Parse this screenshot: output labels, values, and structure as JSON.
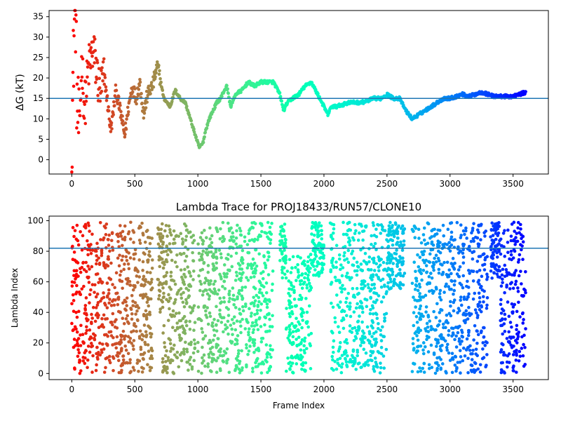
{
  "chart_data": [
    {
      "type": "scatter",
      "title": "",
      "xlabel": "",
      "ylabel": "ΔG (kT)",
      "xlim": [
        -180,
        3780
      ],
      "ylim": [
        -3.5,
        36.5
      ],
      "xticks": [
        0,
        500,
        1000,
        1500,
        2000,
        2500,
        3000,
        3500
      ],
      "yticks": [
        0,
        5,
        10,
        15,
        20,
        25,
        30,
        35
      ],
      "hline": 15,
      "hline_color": "#1f77b4",
      "colormap": "rainbow (red at frame 0 to violet at frame 3600)",
      "series": [
        {
          "x_range": [
            0,
            3600
          ],
          "key_points": [
            [
              0,
              4
            ],
            [
              10,
              20
            ],
            [
              20,
              33
            ],
            [
              30,
              36.5
            ],
            [
              40,
              15
            ],
            [
              60,
              6
            ],
            [
              80,
              25
            ],
            [
              100,
              12
            ],
            [
              130,
              22
            ],
            [
              170,
              27
            ],
            [
              220,
              17
            ],
            [
              260,
              20
            ],
            [
              310,
              7
            ],
            [
              350,
              17
            ],
            [
              390,
              11
            ],
            [
              420,
              6
            ],
            [
              450,
              13
            ],
            [
              480,
              18
            ],
            [
              510,
              15
            ],
            [
              540,
              19
            ],
            [
              570,
              11
            ],
            [
              600,
              16
            ],
            [
              640,
              18
            ],
            [
              680,
              23
            ],
            [
              700,
              20
            ],
            [
              730,
              15
            ],
            [
              780,
              13
            ],
            [
              820,
              17
            ],
            [
              860,
              15
            ],
            [
              900,
              14
            ],
            [
              940,
              10
            ],
            [
              980,
              6
            ],
            [
              1010,
              3
            ],
            [
              1040,
              4
            ],
            [
              1060,
              7
            ],
            [
              1090,
              10
            ],
            [
              1120,
              12
            ],
            [
              1150,
              14
            ],
            [
              1180,
              15
            ],
            [
              1210,
              17
            ],
            [
              1230,
              18
            ],
            [
              1260,
              13
            ],
            [
              1300,
              16
            ],
            [
              1350,
              17
            ],
            [
              1400,
              19
            ],
            [
              1450,
              18
            ],
            [
              1500,
              19
            ],
            [
              1550,
              19
            ],
            [
              1600,
              19
            ],
            [
              1650,
              16
            ],
            [
              1680,
              12
            ],
            [
              1710,
              14
            ],
            [
              1750,
              15
            ],
            [
              1800,
              16
            ],
            [
              1850,
              18
            ],
            [
              1900,
              19
            ],
            [
              1950,
              16
            ],
            [
              2000,
              13
            ],
            [
              2030,
              11
            ],
            [
              2060,
              13
            ],
            [
              2100,
              13
            ],
            [
              2200,
              14
            ],
            [
              2300,
              14
            ],
            [
              2400,
              15
            ],
            [
              2450,
              15
            ],
            [
              2500,
              16
            ],
            [
              2550,
              15
            ],
            [
              2600,
              15
            ],
            [
              2650,
              12
            ],
            [
              2700,
              10
            ],
            [
              2750,
              11
            ],
            [
              2800,
              12
            ],
            [
              2850,
              13
            ],
            [
              2900,
              14
            ],
            [
              2950,
              15
            ],
            [
              3000,
              15
            ],
            [
              3050,
              15.5
            ],
            [
              3100,
              16
            ],
            [
              3150,
              15.5
            ],
            [
              3200,
              16
            ],
            [
              3250,
              16.5
            ],
            [
              3300,
              16
            ],
            [
              3350,
              15.5
            ],
            [
              3400,
              15.5
            ],
            [
              3450,
              15.5
            ],
            [
              3500,
              15.5
            ],
            [
              3550,
              16
            ],
            [
              3600,
              16.5
            ]
          ]
        }
      ]
    },
    {
      "type": "scatter",
      "title": "Lambda Trace for PROJ18433/RUN57/CLONE10",
      "xlabel": "Frame Index",
      "ylabel": "Lambda Index",
      "xlim": [
        -180,
        3780
      ],
      "ylim": [
        -4,
        103
      ],
      "xticks": [
        0,
        500,
        1000,
        1500,
        2000,
        2500,
        3000,
        3500
      ],
      "yticks": [
        0,
        20,
        40,
        60,
        80,
        100
      ],
      "hline": 82,
      "hline_color": "#1f77b4",
      "colormap": "rainbow (red at frame 0 to violet at frame 3600)",
      "series": [
        {
          "x_range": [
            0,
            3600
          ],
          "y_range": [
            0,
            99
          ],
          "description_segments": [
            {
              "x": [
                0,
                60
              ],
              "y": [
                0,
                99
              ]
            },
            {
              "x": [
                60,
                640
              ],
              "y": [
                0,
                99
              ]
            },
            {
              "x": [
                680,
                720
              ],
              "y": [
                40,
                98
              ]
            },
            {
              "x": [
                720,
                980
              ],
              "y": [
                0,
                99
              ]
            },
            {
              "x": [
                1000,
                1600
              ],
              "y": [
                0,
                99
              ]
            },
            {
              "x": [
                1650,
                1700
              ],
              "y": [
                62,
                99
              ]
            },
            {
              "x": [
                1700,
                1900
              ],
              "y": [
                0,
                78
              ]
            },
            {
              "x": [
                1900,
                2000
              ],
              "y": [
                62,
                99
              ]
            },
            {
              "x": [
                2050,
                2500
              ],
              "y": [
                0,
                99
              ]
            },
            {
              "x": [
                2500,
                2640
              ],
              "y": [
                55,
                99
              ]
            },
            {
              "x": [
                2700,
                3300
              ],
              "y": [
                0,
                99
              ]
            },
            {
              "x": [
                3320,
                3400
              ],
              "y": [
                62,
                99
              ]
            },
            {
              "x": [
                3400,
                3600
              ],
              "y": [
                0,
                99
              ]
            }
          ]
        }
      ]
    }
  ]
}
